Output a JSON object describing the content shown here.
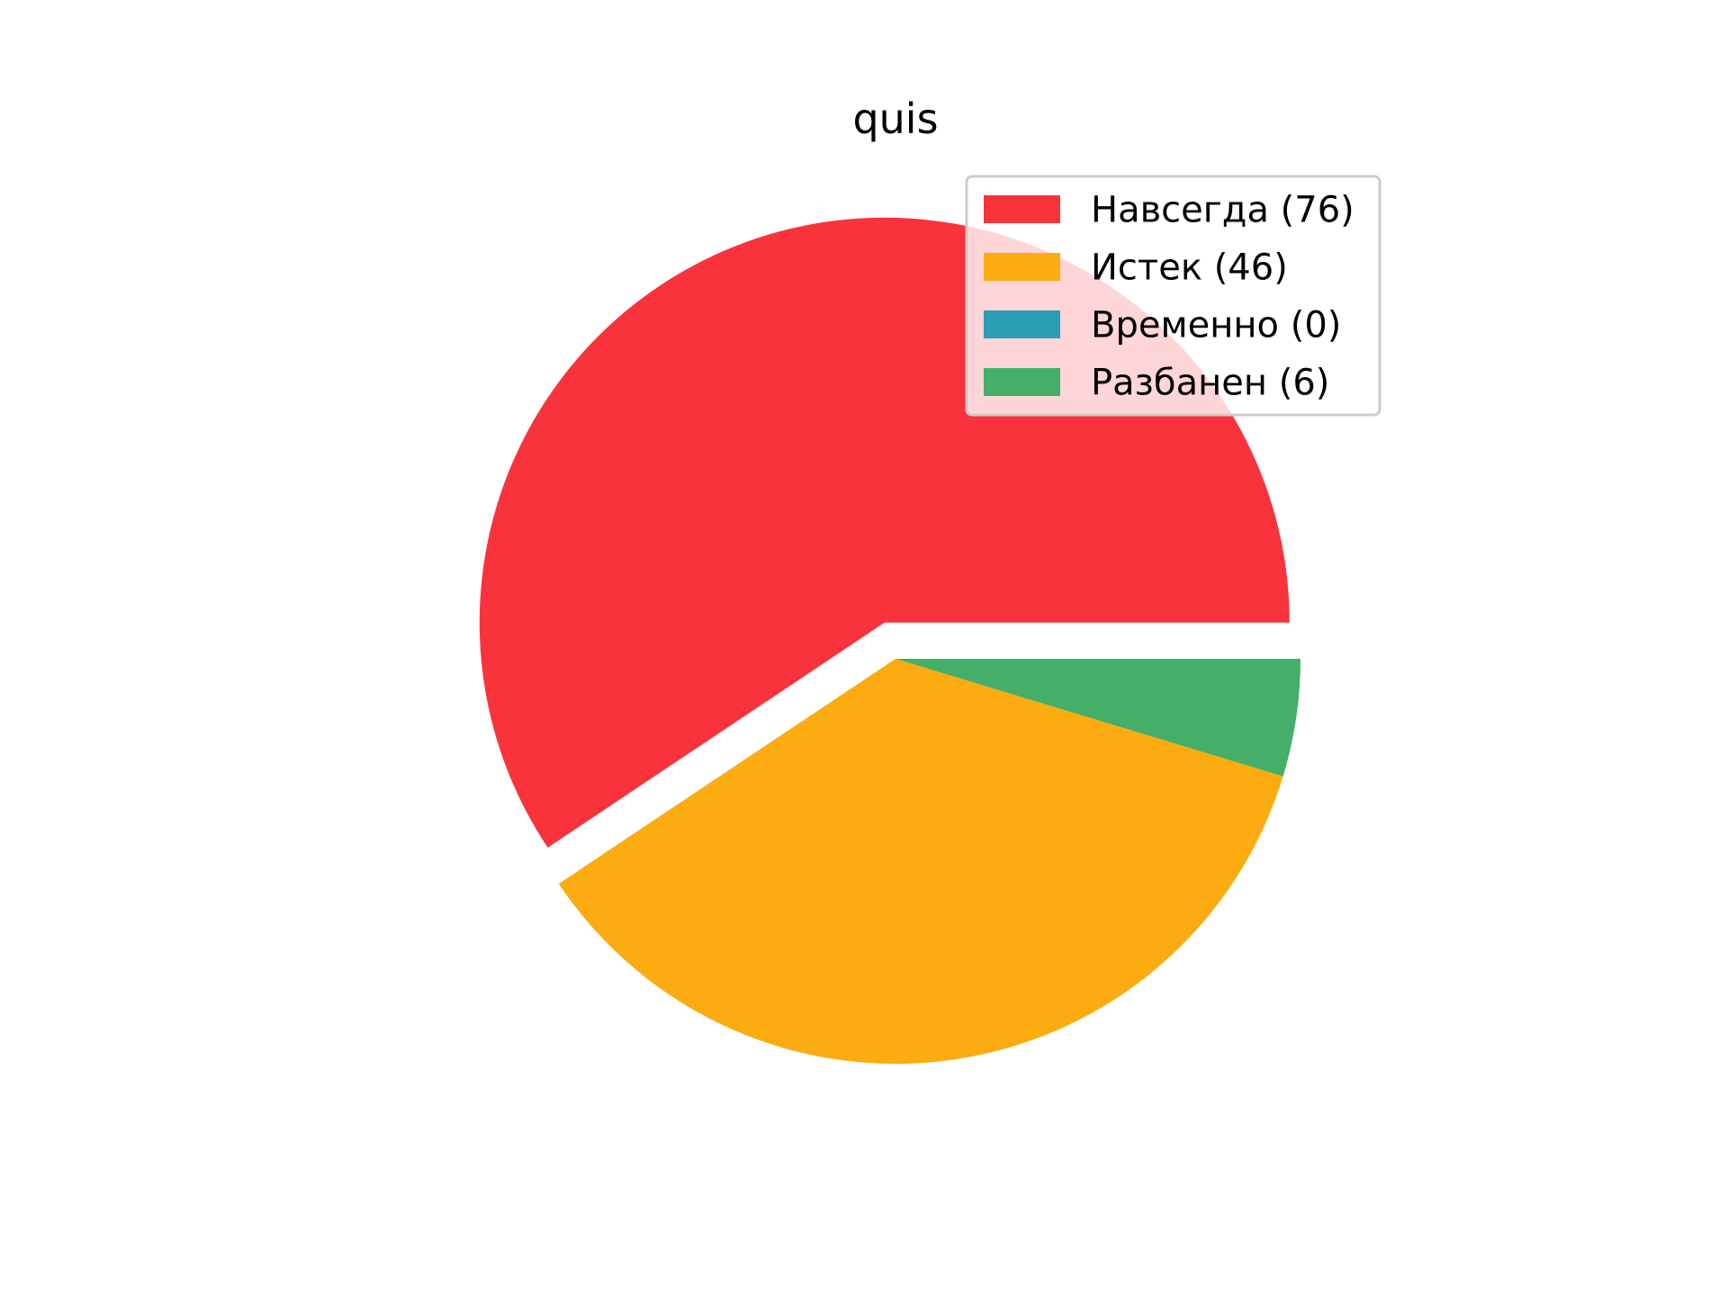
{
  "chart_data": {
    "type": "pie",
    "title": "quis",
    "slices": [
      {
        "label": "Навсегда (76)",
        "value": 76,
        "color": "#f8333c",
        "exploded": true
      },
      {
        "label": "Истек (46)",
        "value": 46,
        "color": "#fcab10",
        "exploded": false
      },
      {
        "label": "Временно (0)",
        "value": 0,
        "color": "#2b9eb3",
        "exploded": false
      },
      {
        "label": "Разбанен (6)",
        "value": 6,
        "color": "#44af69",
        "exploded": false
      }
    ],
    "start_angle_deg": 0,
    "direction": "counterclockwise",
    "legend": "top-right"
  }
}
